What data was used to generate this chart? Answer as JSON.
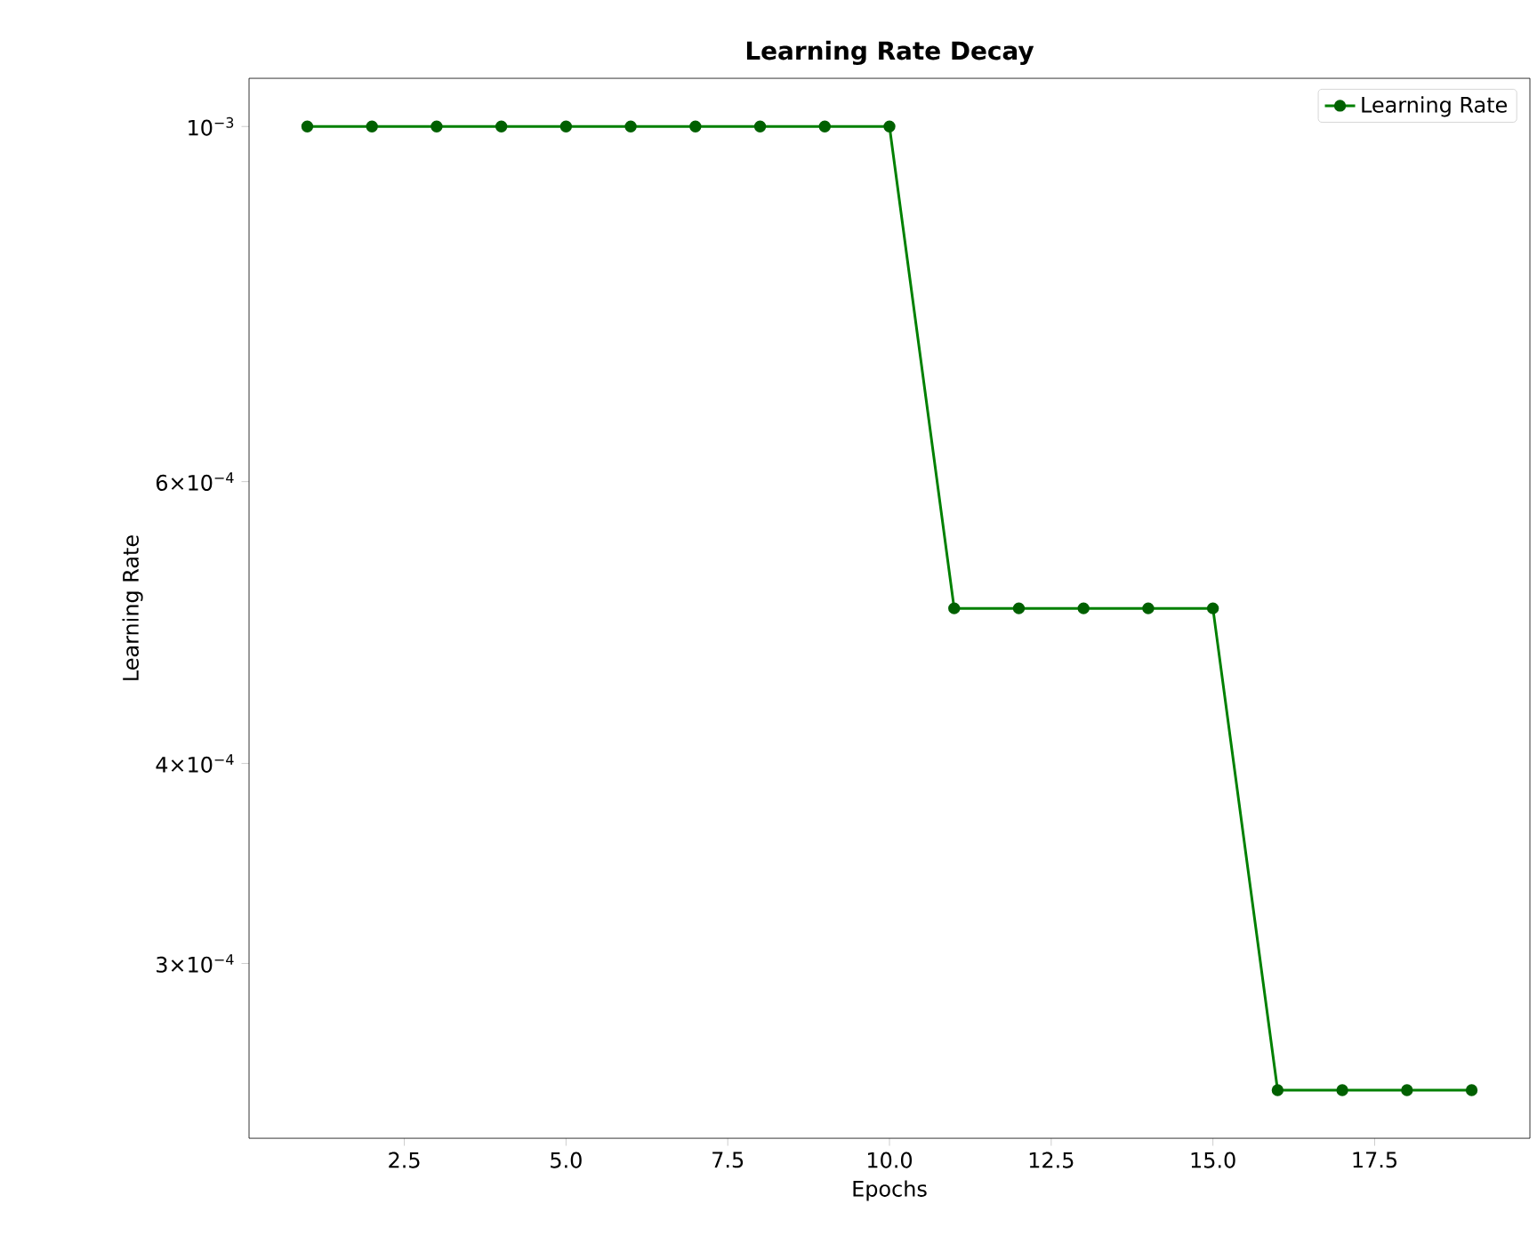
{
  "chart_data": {
    "type": "line",
    "title": "Learning Rate Decay",
    "xlabel": "Epochs",
    "ylabel": "Learning Rate",
    "x": [
      1,
      2,
      3,
      4,
      5,
      6,
      7,
      8,
      9,
      10,
      11,
      12,
      13,
      14,
      15,
      16,
      17,
      18,
      19
    ],
    "series": [
      {
        "name": "Learning Rate",
        "color": "#008000",
        "values": [
          0.001,
          0.001,
          0.001,
          0.001,
          0.001,
          0.001,
          0.001,
          0.001,
          0.001,
          0.001,
          0.0005,
          0.0005,
          0.0005,
          0.0005,
          0.0005,
          0.00025,
          0.00025,
          0.00025,
          0.00025
        ]
      }
    ],
    "log": "y",
    "marker": "circle",
    "line_style": "solid",
    "legend": "top right",
    "grid": false,
    "xlim": [
      0.1,
      19.9
    ],
    "ylim": [
      0.0002333,
      0.0010718
    ],
    "xticks": [
      {
        "value": 2.5,
        "label": "2.5"
      },
      {
        "value": 5,
        "label": "5.0"
      },
      {
        "value": 7.5,
        "label": "7.5"
      },
      {
        "value": 10,
        "label": "10.0"
      },
      {
        "value": 12.5,
        "label": "12.5"
      },
      {
        "value": 15,
        "label": "15.0"
      },
      {
        "value": 17.5,
        "label": "17.5"
      }
    ],
    "yticks": [
      {
        "value": 0.0003,
        "label": "3×10$^{−4}$"
      },
      {
        "value": 0.0004,
        "label": "4×10$^{−4}$"
      },
      {
        "value": 0.0006,
        "label": "6×10$^{−4}$"
      },
      {
        "value": 0.001,
        "label": "10$^{−3}$"
      }
    ]
  }
}
